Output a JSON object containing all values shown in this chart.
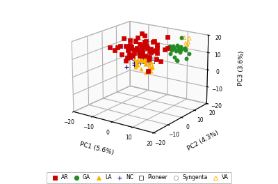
{
  "title": "",
  "pc1_label": "PC1 (5.6%)",
  "pc2_label": "PC2 (4.3%)",
  "pc3_label": "PC3 (3.6%)",
  "axis_range": [
    -20,
    20
  ],
  "axis_ticks": [
    -20,
    -10,
    0,
    10,
    20
  ],
  "background_color": "#ffffff",
  "view_elev": 18,
  "view_azim": -55,
  "group_params": {
    "AR": {
      "n": 65,
      "pc1_mu": -2,
      "pc1_s": 4.5,
      "pc2_mu": 2,
      "pc2_s": 3.5,
      "pc3_mu": 13,
      "pc3_s": 4.5,
      "color": "#cc0000",
      "marker": "s",
      "ms": 14,
      "filled": true,
      "lw": 0.5
    },
    "GA": {
      "n": 25,
      "pc1_mu": 11,
      "pc1_s": 3.0,
      "pc2_mu": 11,
      "pc2_s": 3.0,
      "pc3_mu": 12,
      "pc3_s": 2.5,
      "color": "#228B22",
      "marker": "o",
      "ms": 14,
      "filled": true,
      "lw": 0.5
    },
    "LA": {
      "n": 30,
      "pc1_mu": 1,
      "pc1_s": 3.0,
      "pc2_mu": 2,
      "pc2_s": 2.5,
      "pc3_mu": 7,
      "pc3_s": 3.5,
      "color": "#FFB300",
      "marker": "^",
      "ms": 14,
      "filled": true,
      "lw": 0.5
    },
    "NC": {
      "n": 12,
      "pc1_mu": -1,
      "pc1_s": 2.0,
      "pc2_mu": 0,
      "pc2_s": 2.0,
      "pc3_mu": 7,
      "pc3_s": 2.0,
      "color": "#00008B",
      "marker": "+",
      "ms": 16,
      "filled": true,
      "lw": 0.8
    },
    "Pioneer": {
      "n": 10,
      "pc1_mu": 0,
      "pc1_s": 2.0,
      "pc2_mu": 3,
      "pc2_s": 2.0,
      "pc3_mu": 9,
      "pc3_s": 2.0,
      "color": "#555555",
      "marker": "s",
      "ms": 14,
      "filled": false,
      "lw": 0.7
    },
    "Syngenta": {
      "n": 8,
      "pc1_mu": 2,
      "pc1_s": 1.5,
      "pc2_mu": 3,
      "pc2_s": 1.5,
      "pc3_mu": 8,
      "pc3_s": 1.5,
      "color": "#aaaaaa",
      "marker": "o",
      "ms": 14,
      "filled": false,
      "lw": 0.7
    },
    "VA": {
      "n": 5,
      "pc1_mu": 13,
      "pc1_s": 1.5,
      "pc2_mu": 15,
      "pc2_s": 2.0,
      "pc3_mu": 16,
      "pc3_s": 1.5,
      "color": "#FFB300",
      "marker": "^",
      "ms": 14,
      "filled": false,
      "lw": 0.7
    }
  },
  "legend_order": [
    "AR",
    "GA",
    "LA",
    "NC",
    "Pioneer",
    "Syngenta",
    "VA"
  ]
}
